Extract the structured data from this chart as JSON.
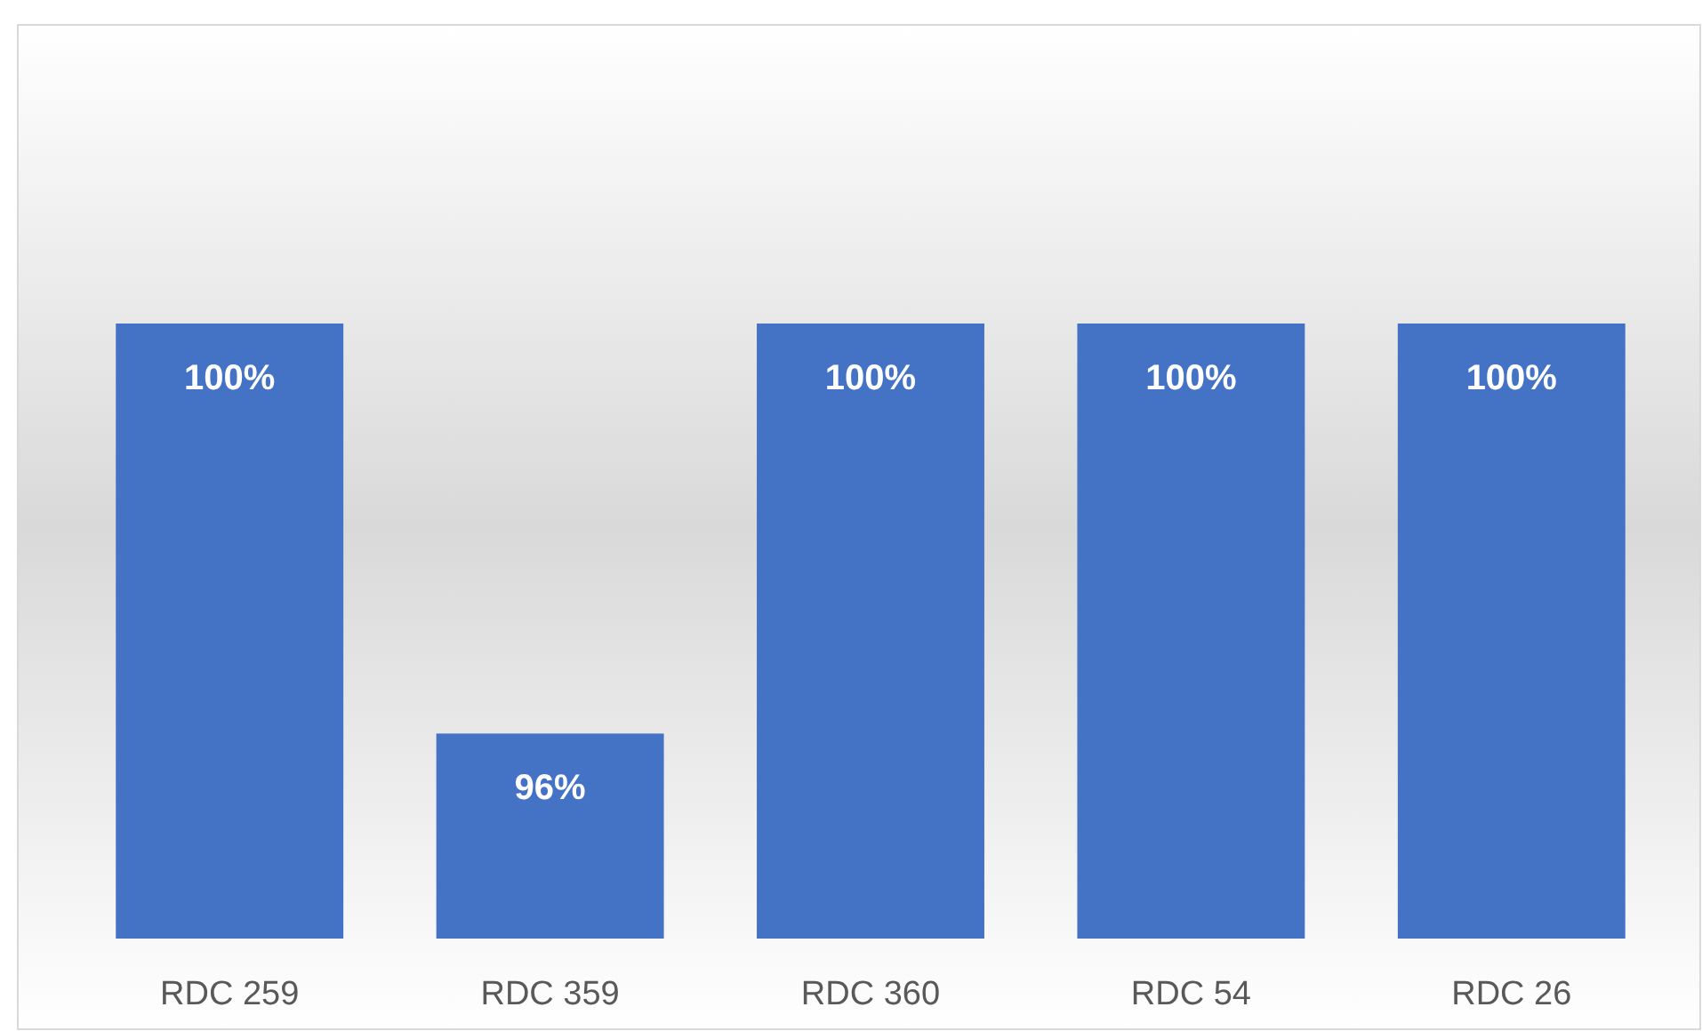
{
  "chart_data": {
    "type": "bar",
    "categories": [
      "RDC 259",
      "RDC 359",
      "RDC 360",
      "RDC 54",
      "RDC 26"
    ],
    "values": [
      100,
      96,
      100,
      100,
      100
    ],
    "value_labels": [
      "100%",
      "96%",
      "100%",
      "100%",
      "100%"
    ],
    "color": "#4472c4",
    "ylim": [
      94,
      100
    ]
  }
}
